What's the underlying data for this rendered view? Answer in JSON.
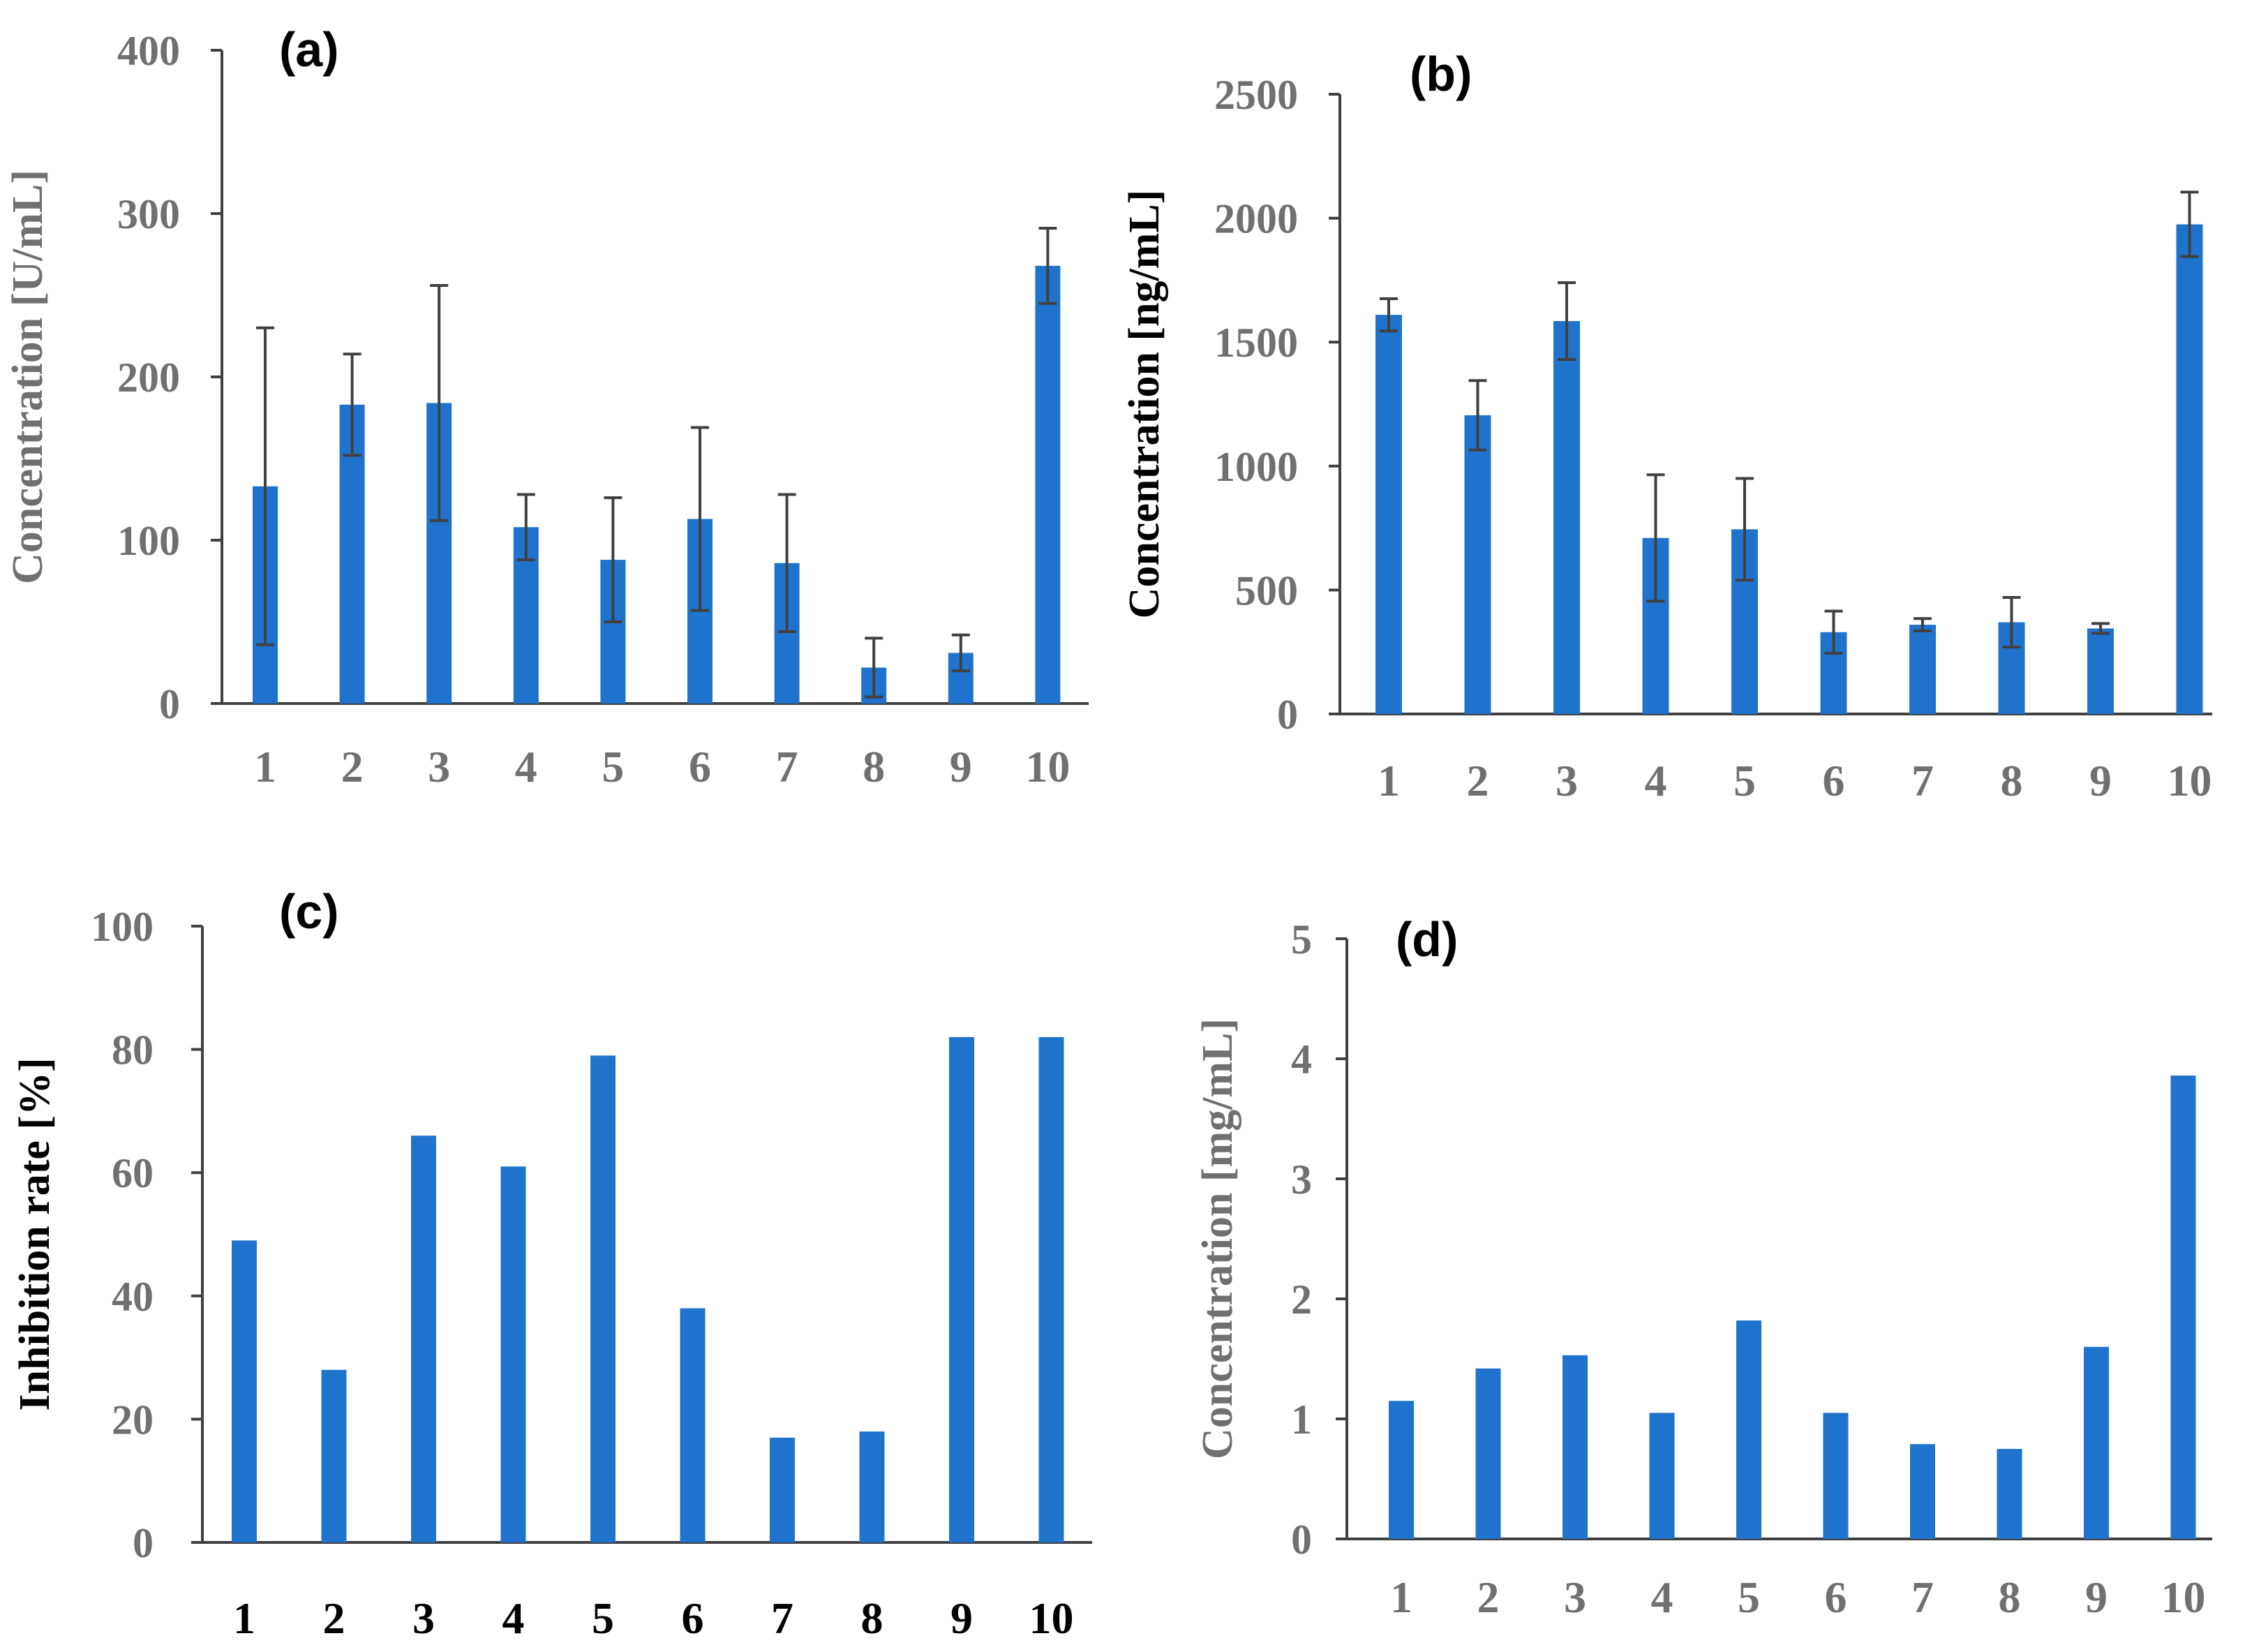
{
  "colors": {
    "bar": "#1f73cc",
    "axis": "#404040",
    "error": "#404040",
    "gray_text": "#707070",
    "black_text": "#000000"
  },
  "chart_data": [
    {
      "type": "bar",
      "panel_label": "(a)",
      "ylabel": "Concentration [U/mL]",
      "xlabel": "",
      "categories": [
        "1",
        "2",
        "3",
        "4",
        "5",
        "6",
        "7",
        "8",
        "9",
        "10"
      ],
      "values": [
        133,
        183,
        184,
        108,
        88,
        113,
        86,
        22,
        31,
        268
      ],
      "errors": [
        97,
        31,
        72,
        20,
        38,
        56,
        42,
        18,
        11,
        23
      ],
      "ylim": [
        0,
        400
      ],
      "yticks": [
        0,
        100,
        200,
        300,
        400
      ],
      "ytick_labels": [
        "0",
        "100",
        "200",
        "300",
        "400"
      ],
      "text_color": "gray"
    },
    {
      "type": "bar",
      "panel_label": "(b)",
      "ylabel": "Concentration [ng/mL]",
      "xlabel": "",
      "categories": [
        "1",
        "2",
        "3",
        "4",
        "5",
        "6",
        "7",
        "8",
        "9",
        "10"
      ],
      "values": [
        1610,
        1205,
        1585,
        710,
        745,
        330,
        360,
        370,
        345,
        1975
      ],
      "errors": [
        65,
        140,
        155,
        255,
        205,
        85,
        25,
        100,
        20,
        130
      ],
      "ylim": [
        0,
        2500
      ],
      "yticks": [
        0,
        500,
        1000,
        1500,
        2000,
        2500
      ],
      "ytick_labels": [
        "0",
        "500",
        "1000",
        "1500",
        "2000",
        "2500"
      ],
      "text_color": "gray",
      "ylabel_color": "black"
    },
    {
      "type": "bar",
      "panel_label": "(c)",
      "ylabel": "Inhibition rate [%]",
      "xlabel": "",
      "categories": [
        "1",
        "2",
        "3",
        "4",
        "5",
        "6",
        "7",
        "8",
        "9",
        "10"
      ],
      "values": [
        49,
        28,
        66,
        61,
        79,
        38,
        17,
        18,
        82,
        82
      ],
      "ylim": [
        0,
        100
      ],
      "yticks": [
        0,
        20,
        40,
        60,
        80,
        100
      ],
      "ytick_labels": [
        "0",
        "20",
        "40",
        "60",
        "80",
        "100"
      ],
      "text_color": "gray",
      "ylabel_color": "black",
      "xtick_color": "black"
    },
    {
      "type": "bar",
      "panel_label": "(d)",
      "ylabel": "Concentration [mg/mL]",
      "xlabel": "",
      "categories": [
        "1",
        "2",
        "3",
        "4",
        "5",
        "6",
        "7",
        "8",
        "9",
        "10"
      ],
      "values": [
        1.15,
        1.42,
        1.53,
        1.05,
        1.82,
        1.05,
        0.79,
        0.75,
        1.6,
        3.86
      ],
      "ylim": [
        0,
        5
      ],
      "yticks": [
        0,
        1,
        2,
        3,
        4,
        5
      ],
      "ytick_labels": [
        "0",
        "1",
        "2",
        "3",
        "4",
        "5"
      ],
      "text_color": "gray"
    }
  ]
}
